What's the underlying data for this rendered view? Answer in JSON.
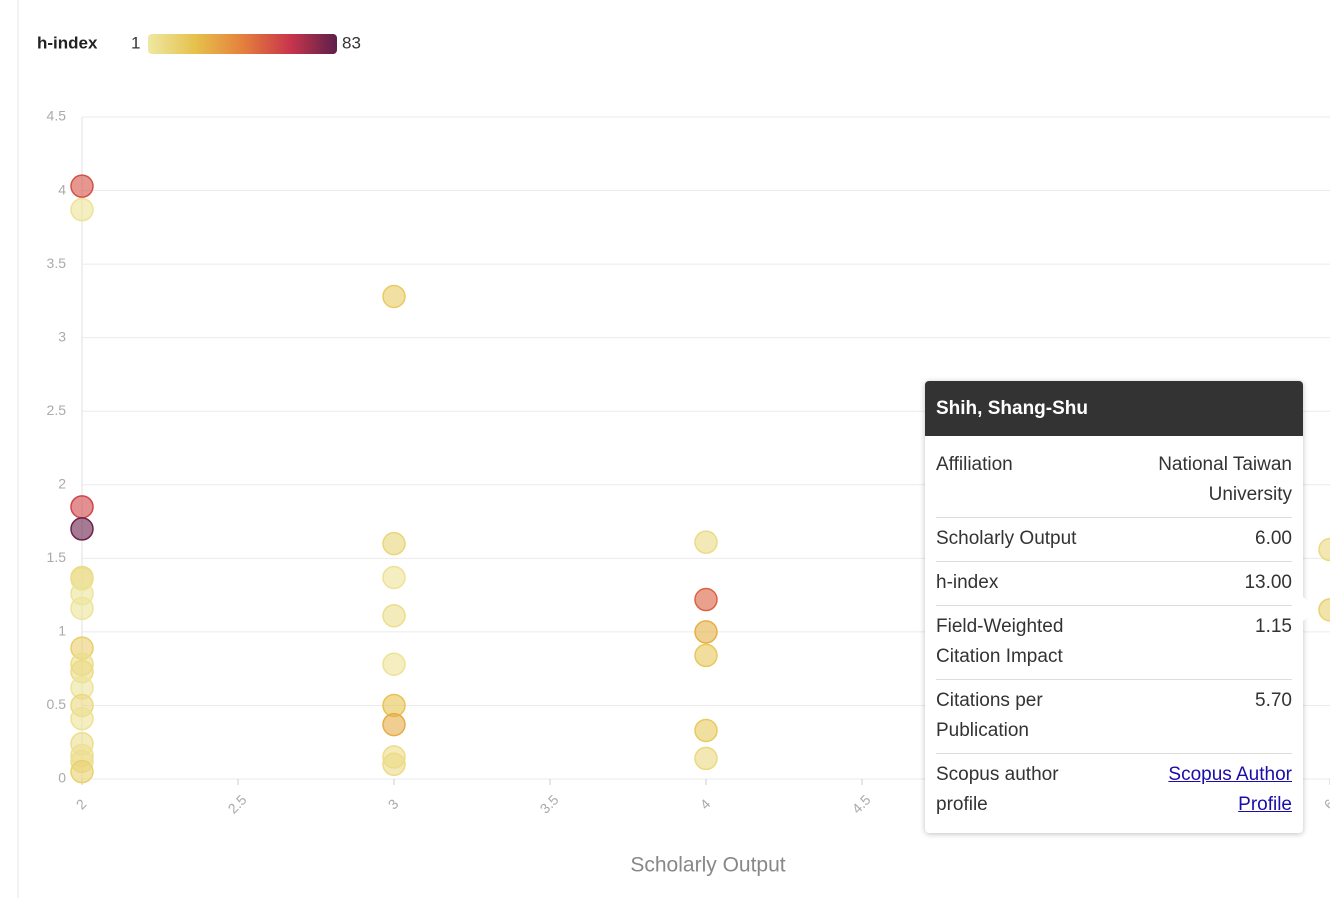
{
  "chart_data": {
    "type": "scatter",
    "color_legend": {
      "title": "h-index",
      "min_label": 1,
      "max_label": 83
    },
    "clim": [
      1,
      83
    ],
    "colorscale": [
      "#eee8a3",
      "#e6c14c",
      "#e5803d",
      "#c9364b",
      "#5c1f4b"
    ],
    "x_label": "Scholarly Output",
    "x": [
      2,
      2,
      2,
      2,
      2,
      2,
      2,
      2,
      2,
      2,
      2,
      2,
      2,
      2,
      2,
      2,
      2,
      2,
      3,
      3,
      3,
      3,
      3,
      3,
      3,
      3,
      3,
      4,
      4,
      4,
      4,
      4,
      4,
      6,
      6
    ],
    "y": [
      4.03,
      3.87,
      1.85,
      1.7,
      1.37,
      1.36,
      1.26,
      1.16,
      0.89,
      0.78,
      0.73,
      0.62,
      0.5,
      0.41,
      0.24,
      0.16,
      0.12,
      0.05,
      3.28,
      1.6,
      1.37,
      1.11,
      0.78,
      0.5,
      0.37,
      0.15,
      0.1,
      1.61,
      1.22,
      1.0,
      0.84,
      0.33,
      0.14,
      1.56,
      1.15
    ],
    "h_index": [
      55,
      4,
      58,
      80,
      8,
      6,
      3,
      3,
      14,
      7,
      8,
      3,
      9,
      4,
      6,
      5,
      6,
      13,
      16,
      11,
      4,
      6,
      4,
      20,
      28,
      7,
      8,
      8,
      50,
      27,
      18,
      17,
      9,
      9,
      13
    ],
    "xlim": [
      2,
      6
    ],
    "xticks": [
      2,
      2.5,
      3,
      3.5,
      4,
      4.5,
      5,
      5.5,
      6
    ],
    "ylim": [
      0,
      4.5
    ],
    "yticks": [
      0,
      0.5,
      1,
      1.5,
      2,
      2.5,
      3,
      3.5,
      4,
      4.5
    ],
    "grid": true
  },
  "tooltip": {
    "title": "Shih, Shang-Shu",
    "rows": [
      {
        "label": "Affiliation",
        "value": "National Taiwan University"
      },
      {
        "label": "Scholarly Output",
        "value": "6.00"
      },
      {
        "label": "h-index",
        "value": "13.00"
      },
      {
        "label": "Field-Weighted Citation Impact",
        "value": "1.15"
      },
      {
        "label": "Citations per Publication",
        "value": "5.70"
      },
      {
        "label": "Scopus author profile",
        "value": "Scopus Author Profile"
      }
    ]
  }
}
